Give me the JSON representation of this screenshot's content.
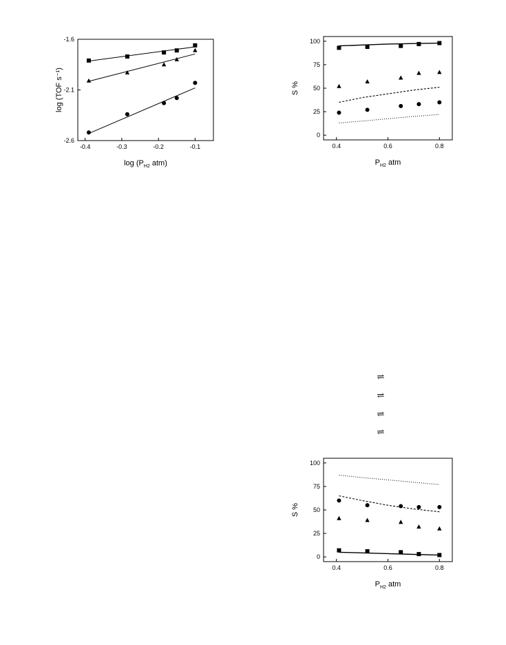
{
  "chart_data": [
    {
      "type": "scatter",
      "title": "",
      "xlabel": {
        "prefix": "log (P",
        "sub": "H2",
        "suffix": " atm)"
      },
      "ylabel": "log (TOF s⁻¹)",
      "xlim": [
        -0.42,
        -0.05
      ],
      "ylim": [
        -2.6,
        -1.6
      ],
      "xticks": [
        -0.4,
        -0.3,
        -0.2,
        -0.1
      ],
      "xtick_labels": [
        "-0.4",
        "-0.3",
        "-0.2",
        "-0.1"
      ],
      "yticks": [
        -2.6,
        -2.1,
        -1.6
      ],
      "ytick_labels": [
        "-2.6",
        "-2.1",
        "-1.6"
      ],
      "grid": false,
      "series": [
        {
          "marker": "square",
          "x": [
            -0.39,
            -0.285,
            -0.185,
            -0.15,
            -0.1
          ],
          "y": [
            -1.81,
            -1.77,
            -1.73,
            -1.71,
            -1.66
          ],
          "fit": [
            [
              -0.39,
              -1.815
            ],
            [
              -0.1,
              -1.675
            ]
          ]
        },
        {
          "marker": "triangle",
          "x": [
            -0.39,
            -0.285,
            -0.185,
            -0.15,
            -0.1
          ],
          "y": [
            -2.01,
            -1.93,
            -1.85,
            -1.8,
            -1.71
          ],
          "fit": [
            [
              -0.39,
              -2.015
            ],
            [
              -0.1,
              -1.745
            ]
          ]
        },
        {
          "marker": "circle",
          "x": [
            -0.39,
            -0.285,
            -0.185,
            -0.15,
            -0.1
          ],
          "y": [
            -2.52,
            -2.34,
            -2.23,
            -2.18,
            -2.03
          ],
          "fit": [
            [
              -0.39,
              -2.53
            ],
            [
              -0.1,
              -2.08
            ]
          ]
        }
      ]
    },
    {
      "type": "scatter",
      "title": "",
      "xlabel": {
        "prefix": "P",
        "sub": "H2",
        "suffix": "  atm"
      },
      "ylabel": "S %",
      "xlim": [
        0.35,
        0.85
      ],
      "ylim": [
        -5,
        105
      ],
      "xticks": [
        0.4,
        0.6,
        0.8
      ],
      "xtick_labels": [
        "0.4",
        "0.6",
        "0.8"
      ],
      "yticks": [
        0,
        25,
        50,
        75,
        100
      ],
      "ytick_labels": [
        "0",
        "25",
        "50",
        "75",
        "100"
      ],
      "grid": false,
      "series": [
        {
          "marker": "square",
          "x": [
            0.41,
            0.52,
            0.65,
            0.72,
            0.8
          ],
          "y": [
            93,
            94,
            95,
            97,
            98
          ]
        },
        {
          "marker": "triangle",
          "x": [
            0.41,
            0.52,
            0.65,
            0.72,
            0.8
          ],
          "y": [
            52,
            57,
            61,
            66,
            67
          ]
        },
        {
          "marker": "circle",
          "x": [
            0.41,
            0.52,
            0.65,
            0.72,
            0.8
          ],
          "y": [
            24,
            27,
            31,
            33,
            35
          ]
        }
      ],
      "curves": [
        {
          "style": "solid",
          "points": [
            [
              0.41,
              95
            ],
            [
              0.5,
              96
            ],
            [
              0.6,
              97
            ],
            [
              0.7,
              97.5
            ],
            [
              0.8,
              98
            ]
          ]
        },
        {
          "style": "dashed",
          "points": [
            [
              0.41,
              35
            ],
            [
              0.5,
              40
            ],
            [
              0.6,
              44
            ],
            [
              0.7,
              48
            ],
            [
              0.8,
              51
            ]
          ]
        },
        {
          "style": "dotted",
          "points": [
            [
              0.41,
              13
            ],
            [
              0.5,
              15
            ],
            [
              0.6,
              17.5
            ],
            [
              0.7,
              20
            ],
            [
              0.8,
              22
            ]
          ]
        }
      ]
    },
    {
      "type": "scatter",
      "title": "",
      "xlabel": {
        "prefix": "P",
        "sub": "H2",
        "suffix": "  atm"
      },
      "ylabel": "S %",
      "xlim": [
        0.35,
        0.85
      ],
      "ylim": [
        -5,
        105
      ],
      "xticks": [
        0.4,
        0.6,
        0.8
      ],
      "xtick_labels": [
        "0.4",
        "0.6",
        "0.8"
      ],
      "yticks": [
        0,
        25,
        50,
        75,
        100
      ],
      "ytick_labels": [
        "0",
        "25",
        "50",
        "75",
        "100"
      ],
      "grid": false,
      "series": [
        {
          "marker": "square",
          "x": [
            0.41,
            0.52,
            0.65,
            0.72,
            0.8
          ],
          "y": [
            7,
            6,
            5,
            3,
            2
          ]
        },
        {
          "marker": "triangle",
          "x": [
            0.41,
            0.52,
            0.65,
            0.72,
            0.8
          ],
          "y": [
            41,
            39,
            37,
            32,
            30
          ]
        },
        {
          "marker": "circle",
          "x": [
            0.41,
            0.52,
            0.65,
            0.72,
            0.8
          ],
          "y": [
            60,
            55,
            54,
            53,
            53
          ]
        }
      ],
      "curves": [
        {
          "style": "solid",
          "points": [
            [
              0.41,
              5
            ],
            [
              0.5,
              4.3
            ],
            [
              0.6,
              3.5
            ],
            [
              0.7,
              2.7
            ],
            [
              0.8,
              2
            ]
          ]
        },
        {
          "style": "dashed",
          "points": [
            [
              0.41,
              65
            ],
            [
              0.5,
              60
            ],
            [
              0.6,
              55
            ],
            [
              0.7,
              51
            ],
            [
              0.8,
              48
            ]
          ]
        },
        {
          "style": "dotted",
          "points": [
            [
              0.41,
              87
            ],
            [
              0.5,
              84.5
            ],
            [
              0.6,
              82
            ],
            [
              0.7,
              79.5
            ],
            [
              0.8,
              77
            ]
          ]
        }
      ]
    }
  ],
  "equilibrium_arrows": [
    "⇌",
    "⇌",
    "⇌",
    "⇌"
  ]
}
